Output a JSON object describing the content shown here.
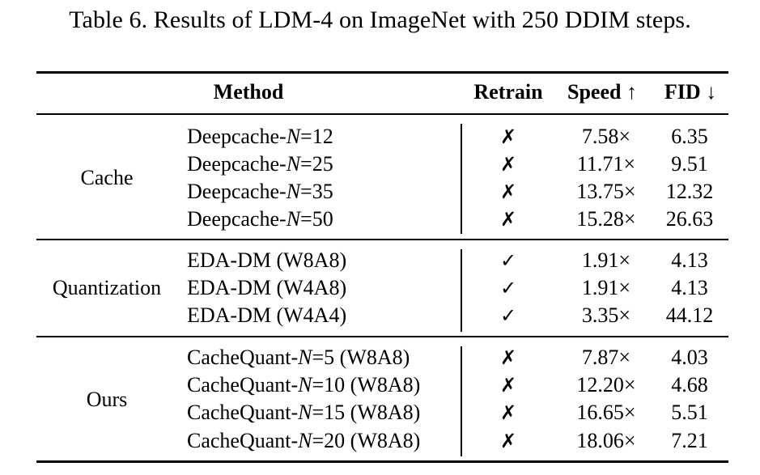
{
  "caption": "Table 6. Results of LDM-4 on ImageNet with 250 DDIM steps.",
  "headers": {
    "method": "Method",
    "retrain": "Retrain",
    "speed": "Speed ↑",
    "fid": "FID ↓"
  },
  "groups": [
    {
      "name": "Cache",
      "rows": [
        {
          "prefix": "Deepcache-",
          "n": "N",
          "suffix": "=12",
          "retrain": "✗",
          "speed": "7.58×",
          "fid": "6.35"
        },
        {
          "prefix": "Deepcache-",
          "n": "N",
          "suffix": "=25",
          "retrain": "✗",
          "speed": "11.71×",
          "fid": "9.51"
        },
        {
          "prefix": "Deepcache-",
          "n": "N",
          "suffix": "=35",
          "retrain": "✗",
          "speed": "13.75×",
          "fid": "12.32"
        },
        {
          "prefix": "Deepcache-",
          "n": "N",
          "suffix": "=50",
          "retrain": "✗",
          "speed": "15.28×",
          "fid": "26.63"
        }
      ]
    },
    {
      "name": "Quantization",
      "rows": [
        {
          "prefix": "EDA-DM (W8A8)",
          "n": "",
          "suffix": "",
          "retrain": "✓",
          "speed": "1.91×",
          "fid": "4.13"
        },
        {
          "prefix": "EDA-DM (W4A8)",
          "n": "",
          "suffix": "",
          "retrain": "✓",
          "speed": "1.91×",
          "fid": "4.13"
        },
        {
          "prefix": "EDA-DM (W4A4)",
          "n": "",
          "suffix": "",
          "retrain": "✓",
          "speed": "3.35×",
          "fid": "44.12"
        }
      ]
    },
    {
      "name": "Ours",
      "rows": [
        {
          "prefix": "CacheQuant-",
          "n": "N",
          "suffix": "=5 (W8A8)",
          "retrain": "✗",
          "speed": "7.87×",
          "fid": "4.03"
        },
        {
          "prefix": "CacheQuant-",
          "n": "N",
          "suffix": "=10 (W8A8)",
          "retrain": "✗",
          "speed": "12.20×",
          "fid": "4.68"
        },
        {
          "prefix": "CacheQuant-",
          "n": "N",
          "suffix": "=15 (W8A8)",
          "retrain": "✗",
          "speed": "16.65×",
          "fid": "5.51"
        },
        {
          "prefix": "CacheQuant-",
          "n": "N",
          "suffix": "=20 (W8A8)",
          "retrain": "✗",
          "speed": "18.06×",
          "fid": "7.21"
        }
      ]
    }
  ]
}
